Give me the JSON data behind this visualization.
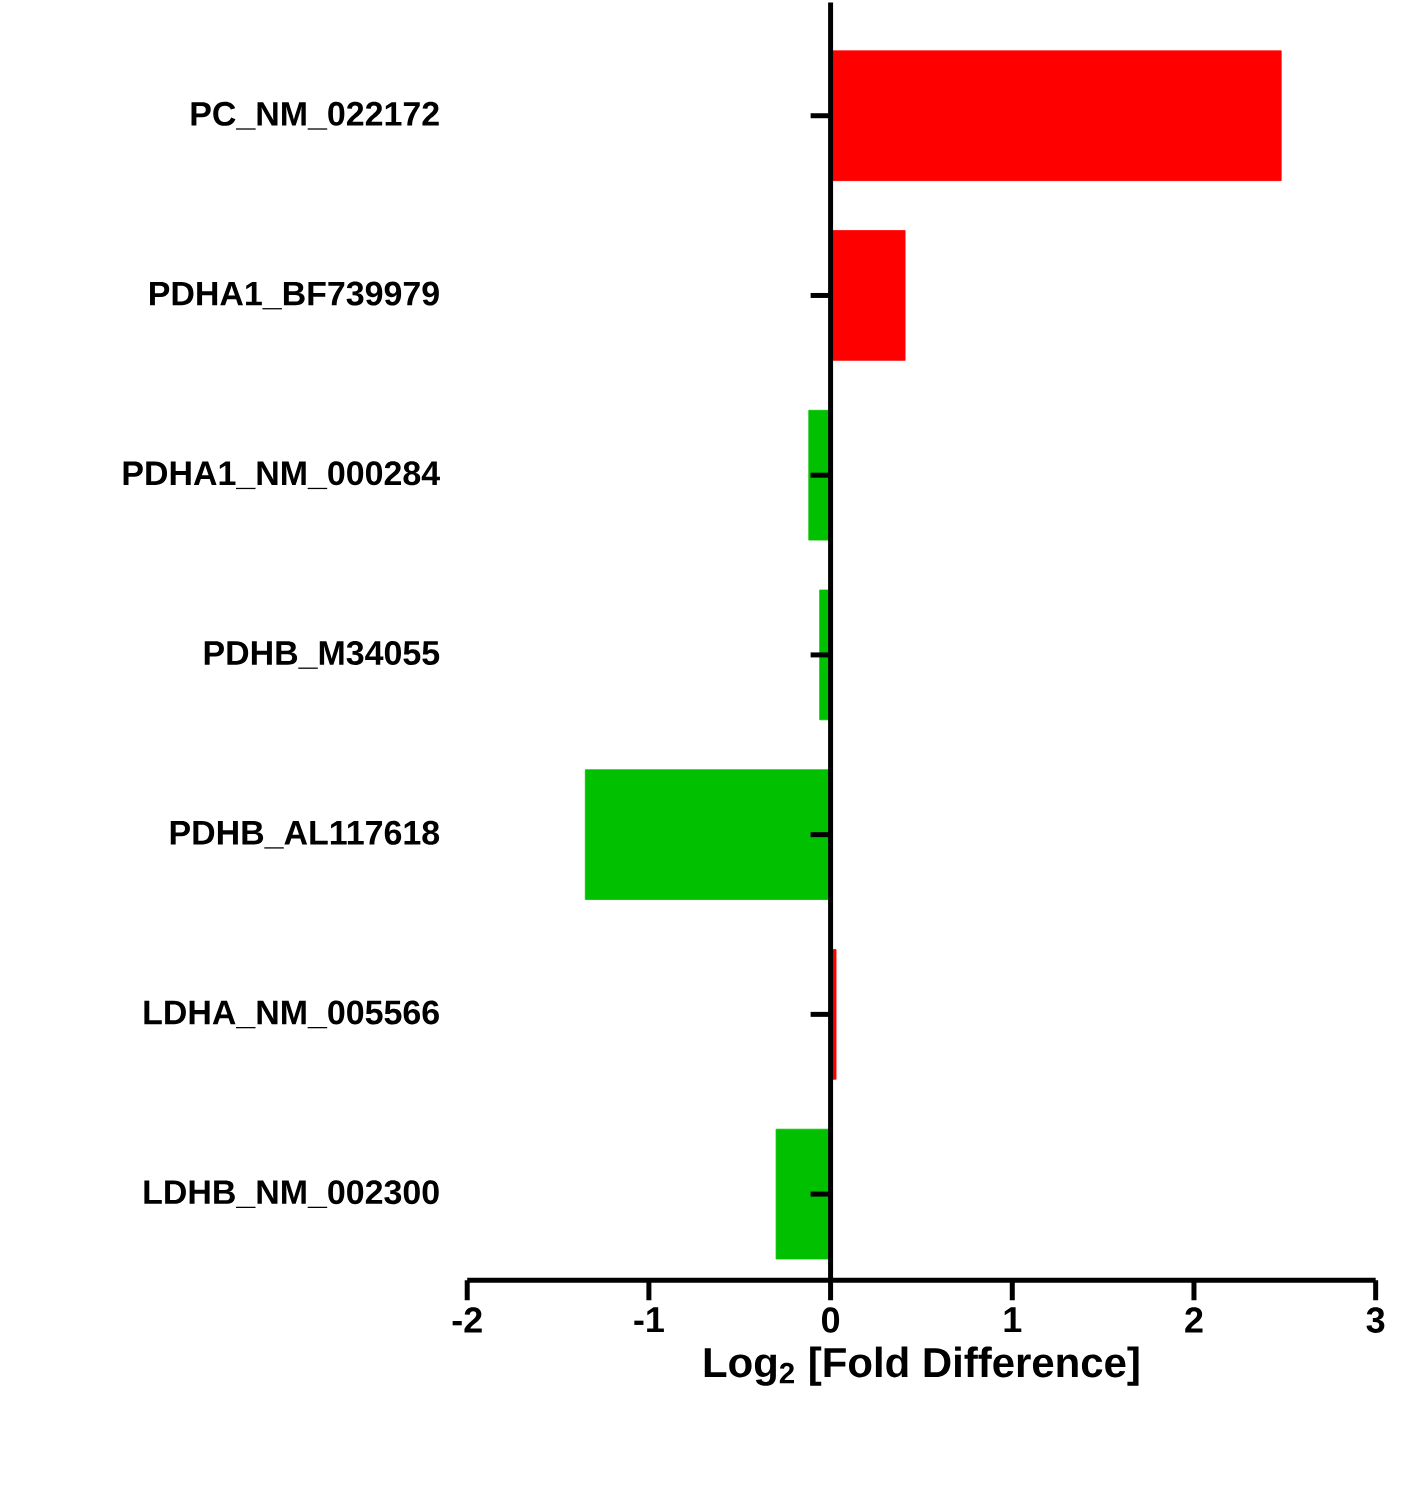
{
  "chart_data": {
    "type": "bar",
    "orientation": "horizontal",
    "categories": [
      "PC_NM_022172",
      "PDHA1_BF739979",
      "PDHA1_NM_000284",
      "PDHB_M34055",
      "PDHB_AL117618",
      "LDHA_NM_005566",
      "LDHB_NM_002300"
    ],
    "values": [
      2.48,
      0.41,
      -0.12,
      -0.06,
      -1.35,
      0.03,
      -0.3
    ],
    "colors": [
      "#ff0000",
      "#ff0000",
      "#00c000",
      "#00c000",
      "#00c000",
      "#ff0000",
      "#00c000"
    ],
    "xlabel": "Log$_{2}$ [Fold Difference]",
    "xlim": [
      -2,
      3
    ],
    "xticks": [
      -2,
      -1,
      0,
      1,
      2,
      3
    ]
  }
}
